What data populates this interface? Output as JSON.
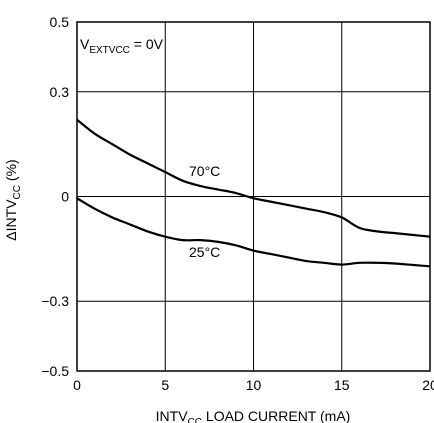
{
  "chart_data": {
    "type": "line",
    "xlabel": {
      "main": "INTV",
      "sub": "CC",
      "rest": " LOAD CURRENT (mA)"
    },
    "ylabel": {
      "main": "ΔINTV",
      "sub": "CC",
      "rest": " (%)"
    },
    "xlim": [
      0,
      20
    ],
    "ylim": [
      -0.5,
      0.5
    ],
    "x_ticks": [
      "0",
      "5",
      "10",
      "15",
      "20"
    ],
    "y_ticks": [
      "−0.5",
      "−0.3",
      "0",
      "0.3",
      "0.5"
    ],
    "grid": true,
    "condition": {
      "main": "V",
      "sub": "EXTVCC",
      "rest": " = 0V"
    },
    "series": [
      {
        "name": "70°C",
        "x": [
          0,
          1,
          2,
          3,
          4,
          5,
          6,
          7,
          8,
          9,
          10,
          11,
          12,
          13,
          14,
          15,
          16,
          17,
          18,
          19,
          20
        ],
        "y": [
          0.22,
          0.18,
          0.15,
          0.12,
          0.095,
          0.07,
          0.045,
          0.03,
          0.02,
          0.01,
          -0.005,
          -0.015,
          -0.025,
          -0.035,
          -0.045,
          -0.06,
          -0.09,
          -0.1,
          -0.105,
          -0.11,
          -0.115
        ]
      },
      {
        "name": "25°C",
        "x": [
          0,
          1,
          2,
          3,
          4,
          5,
          6,
          7,
          8,
          9,
          10,
          11,
          12,
          13,
          14,
          15,
          16,
          17,
          18,
          19,
          20
        ],
        "y": [
          -0.005,
          -0.035,
          -0.06,
          -0.08,
          -0.1,
          -0.115,
          -0.125,
          -0.125,
          -0.13,
          -0.14,
          -0.155,
          -0.165,
          -0.175,
          -0.185,
          -0.19,
          -0.195,
          -0.19,
          -0.19,
          -0.192,
          -0.196,
          -0.2
        ]
      }
    ]
  }
}
